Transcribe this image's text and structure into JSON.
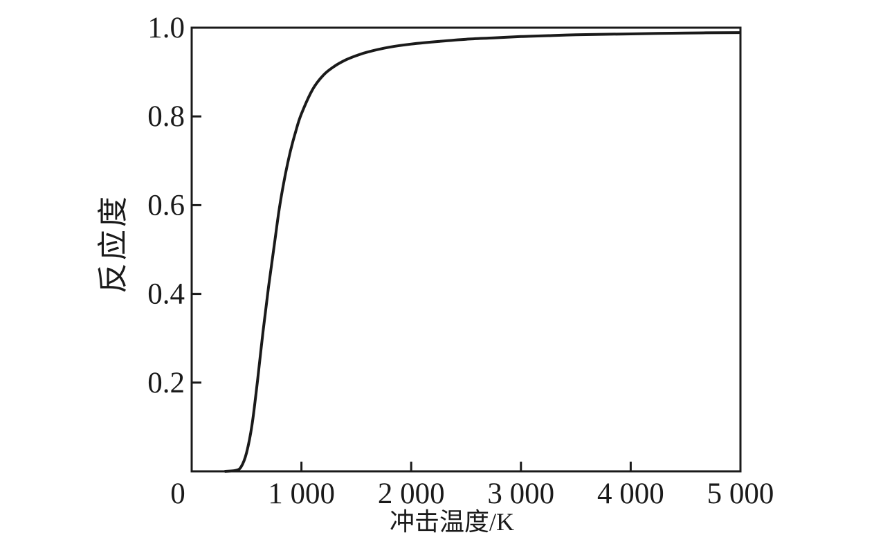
{
  "figure": {
    "background": "#ffffff"
  },
  "chart_data": {
    "type": "line",
    "title": "",
    "xlabel": "冲击温度/K",
    "ylabel": "反应度",
    "xlim": [
      0,
      5000
    ],
    "ylim": [
      0,
      1.0
    ],
    "grid": false,
    "legend_position": "none",
    "line_color": "#1a1a1a",
    "x_ticks": [
      0,
      1000,
      2000,
      3000,
      4000,
      5000
    ],
    "x_tick_labels": [
      "0",
      "1 000",
      "2 000",
      "3 000",
      "4 000",
      "5 000"
    ],
    "y_ticks": [
      0.2,
      0.4,
      0.6,
      0.8,
      1.0
    ],
    "y_tick_labels": [
      "0.2",
      "0.4",
      "0.6",
      "0.8",
      "1.0"
    ],
    "series": [
      {
        "x": [
          300,
          400,
          450,
          500,
          550,
          600,
          650,
          700,
          750,
          800,
          850,
          900,
          950,
          1000,
          1100,
          1200,
          1300,
          1400,
          1500,
          1600,
          1800,
          2000,
          2250,
          2500,
          2750,
          3000,
          3250,
          3500,
          4000,
          4500,
          5000
        ],
        "y": [
          0.0,
          0.002,
          0.01,
          0.042,
          0.105,
          0.205,
          0.315,
          0.415,
          0.505,
          0.595,
          0.665,
          0.722,
          0.768,
          0.806,
          0.86,
          0.893,
          0.913,
          0.927,
          0.937,
          0.945,
          0.956,
          0.963,
          0.969,
          0.974,
          0.977,
          0.98,
          0.982,
          0.984,
          0.986,
          0.988,
          0.989
        ]
      }
    ]
  }
}
